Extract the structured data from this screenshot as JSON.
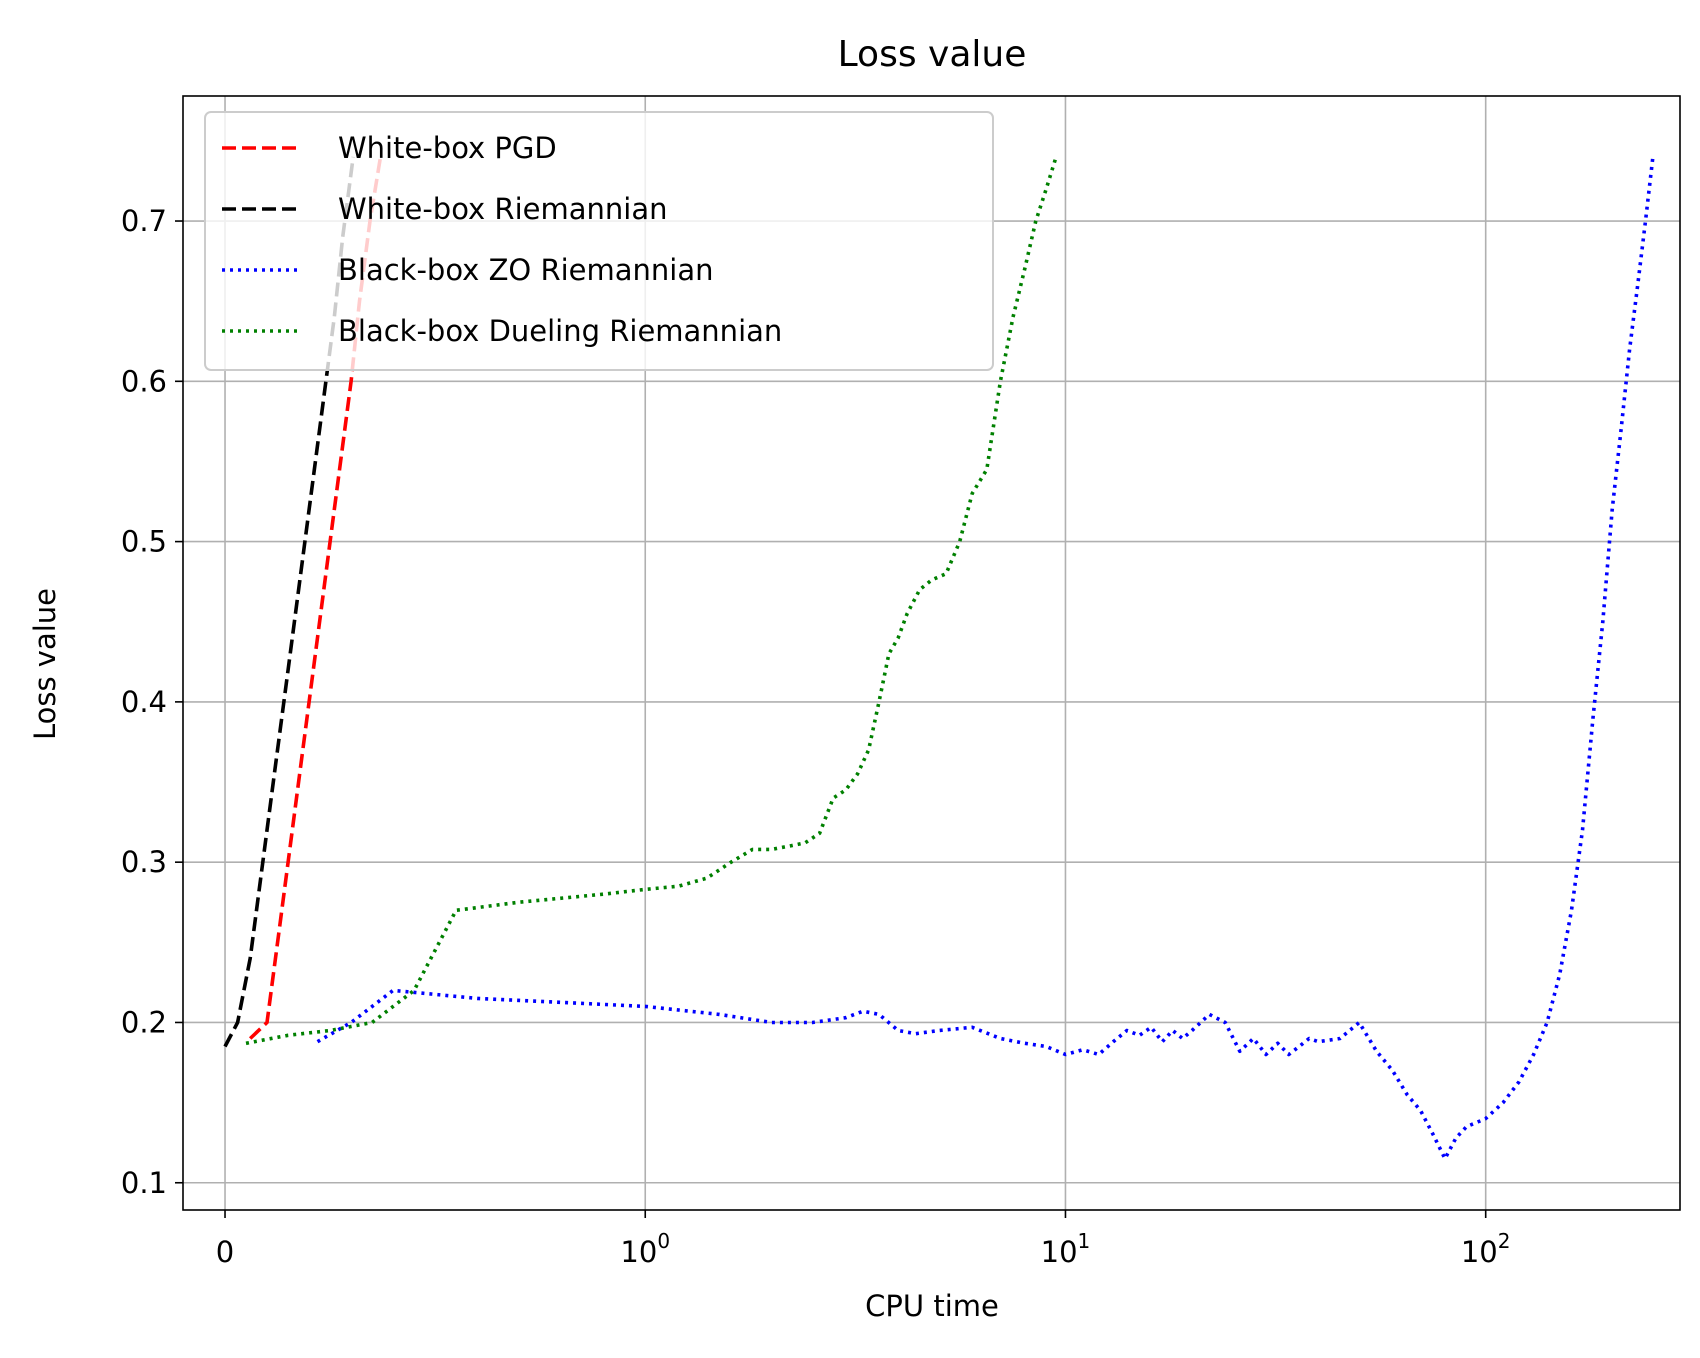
{
  "chart_data": {
    "type": "line",
    "title": "Loss value",
    "xlabel": "CPU time",
    "ylabel": "Loss value",
    "xscale": "symlog",
    "xlim": [
      -0.1,
      290
    ],
    "ylim": [
      0.083,
      0.778
    ],
    "grid": true,
    "legend_position": "top-left",
    "x_ticks": [
      {
        "value": 0,
        "label": "0",
        "exponent": ""
      },
      {
        "value": 1,
        "label": "10",
        "exponent": "0"
      },
      {
        "value": 10,
        "label": "10",
        "exponent": "1"
      },
      {
        "value": 100,
        "label": "10",
        "exponent": "2"
      }
    ],
    "y_ticks": [
      0.1,
      0.2,
      0.3,
      0.4,
      0.5,
      0.6,
      0.7
    ],
    "y_tick_labels": [
      "0.1",
      "0.2",
      "0.3",
      "0.4",
      "0.5",
      "0.6",
      "0.7"
    ],
    "series": [
      {
        "name": "White-box PGD",
        "color": "#ff0000",
        "style": "dashed",
        "x": [
          0.06,
          0.1,
          0.13,
          0.16,
          0.19,
          0.22,
          0.25,
          0.28,
          0.3,
          0.32,
          0.345,
          0.37
        ],
        "y": [
          0.19,
          0.2,
          0.26,
          0.32,
          0.38,
          0.44,
          0.5,
          0.56,
          0.6,
          0.65,
          0.7,
          0.74
        ]
      },
      {
        "name": "White-box Riemannian",
        "color": "#000000",
        "style": "dashed",
        "x": [
          0.0,
          0.03,
          0.06,
          0.09,
          0.12,
          0.15,
          0.18,
          0.21,
          0.24,
          0.26,
          0.28,
          0.305
        ],
        "y": [
          0.185,
          0.2,
          0.24,
          0.3,
          0.36,
          0.42,
          0.48,
          0.54,
          0.6,
          0.64,
          0.69,
          0.74
        ]
      },
      {
        "name": "Black-box ZO Riemannian",
        "color": "#0000ff",
        "style": "dotted",
        "x": [
          0.22,
          0.3,
          0.4,
          0.6,
          1.0,
          1.5,
          2.0,
          2.5,
          3.0,
          3.3,
          3.6,
          4.0,
          4.4,
          5.0,
          6.0,
          7.0,
          8.0,
          9.0,
          10.0,
          11.0,
          12.0,
          13.0,
          14.0,
          15.0,
          16.0,
          17.0,
          18.0,
          19.0,
          20.0,
          22.0,
          24.0,
          26.0,
          28.0,
          30.0,
          32.0,
          34.0,
          36.0,
          38.0,
          40.0,
          45.0,
          50.0,
          55.0,
          60.0,
          65.0,
          70.0,
          75.0,
          80.0,
          85.0,
          90.0,
          100.0,
          110.0,
          120.0,
          130.0,
          140.0,
          150.0,
          160.0,
          170.0,
          180.0,
          190.0,
          200.0,
          210.0,
          220.0,
          230.0,
          240.0,
          250.0
        ],
        "y": [
          0.188,
          0.2,
          0.22,
          0.215,
          0.21,
          0.205,
          0.2,
          0.2,
          0.203,
          0.207,
          0.205,
          0.195,
          0.193,
          0.195,
          0.197,
          0.19,
          0.187,
          0.185,
          0.18,
          0.183,
          0.18,
          0.188,
          0.195,
          0.192,
          0.197,
          0.188,
          0.195,
          0.19,
          0.195,
          0.205,
          0.2,
          0.182,
          0.19,
          0.18,
          0.187,
          0.18,
          0.185,
          0.19,
          0.188,
          0.19,
          0.2,
          0.182,
          0.17,
          0.155,
          0.145,
          0.13,
          0.115,
          0.128,
          0.135,
          0.14,
          0.15,
          0.163,
          0.18,
          0.2,
          0.23,
          0.27,
          0.32,
          0.39,
          0.45,
          0.52,
          0.57,
          0.62,
          0.66,
          0.7,
          0.74
        ]
      },
      {
        "name": "Black-box Dueling Riemannian",
        "color": "#008000",
        "style": "dotted",
        "x": [
          0.05,
          0.15,
          0.25,
          0.35,
          0.45,
          0.55,
          0.7,
          0.9,
          1.0,
          1.2,
          1.4,
          1.6,
          1.8,
          2.0,
          2.2,
          2.4,
          2.6,
          2.8,
          3.0,
          3.2,
          3.4,
          3.6,
          3.8,
          4.0,
          4.2,
          4.5,
          4.8,
          5.2,
          5.6,
          6.0,
          6.5,
          7.0,
          7.5,
          8.0,
          8.5,
          9.0,
          9.5
        ],
        "y": [
          0.187,
          0.192,
          0.195,
          0.2,
          0.22,
          0.27,
          0.275,
          0.28,
          0.283,
          0.285,
          0.29,
          0.3,
          0.308,
          0.308,
          0.31,
          0.312,
          0.318,
          0.34,
          0.345,
          0.355,
          0.37,
          0.4,
          0.43,
          0.44,
          0.455,
          0.47,
          0.476,
          0.48,
          0.5,
          0.53,
          0.545,
          0.6,
          0.64,
          0.67,
          0.7,
          0.72,
          0.74
        ]
      }
    ]
  }
}
